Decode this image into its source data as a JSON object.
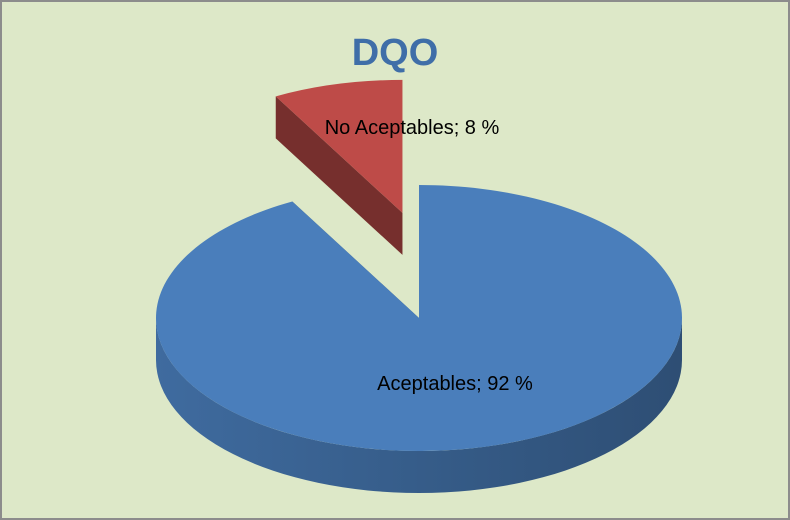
{
  "chart_data": {
    "type": "pie",
    "title": "DQO",
    "style": "3d-exploded",
    "slices": [
      {
        "label": "Aceptables",
        "value": 92,
        "display": "Aceptables; 92 %",
        "color": "#4a7ebb",
        "exploded": false
      },
      {
        "label": "No Aceptables",
        "value": 8,
        "display": "No Aceptables; 8 %",
        "color": "#be4b48",
        "exploded": true
      }
    ]
  },
  "colors": {
    "background": "#dde8c8",
    "border": "#8c8c8c",
    "title": "#3f6ea8"
  }
}
